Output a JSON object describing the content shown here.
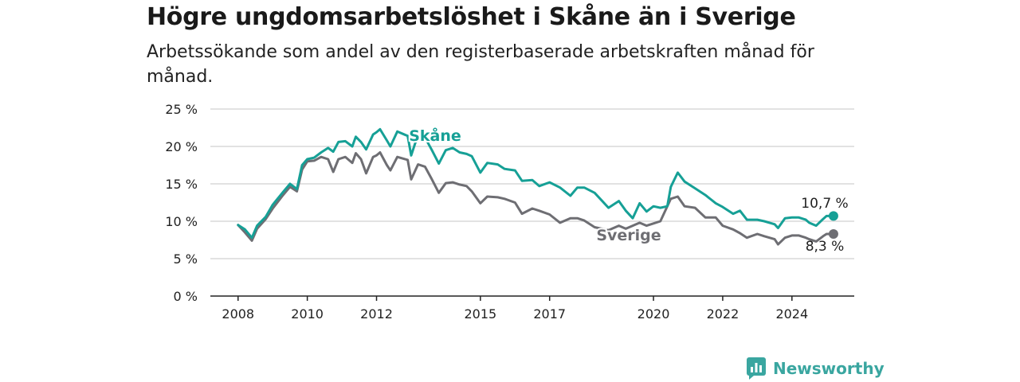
{
  "title": "Högre ungdomsarbetslöshet i Skåne än i Sverige",
  "subtitle": "Arbetssökande som andel av den registerbaserade arbetskraften månad för månad.",
  "brand": {
    "name": "Newsworthy",
    "icon": "newsworthy-logo-icon",
    "color": "#3aa6a0"
  },
  "chart_data": {
    "type": "line",
    "y_ticks": [
      "0 %",
      "5 %",
      "10 %",
      "15 %",
      "20 %",
      "25 %"
    ],
    "y_tick_values": [
      0,
      5,
      10,
      15,
      20,
      25
    ],
    "ylim": [
      0,
      25
    ],
    "x_ticks": [
      "2008",
      "2010",
      "2012",
      "2015",
      "2017",
      "2020",
      "2022",
      "2024"
    ],
    "x_tick_values": [
      2008.0,
      2010.0,
      2012.0,
      2015.0,
      2017.0,
      2020.0,
      2022.0,
      2024.0
    ],
    "xlim": [
      2007.2,
      2025.8
    ],
    "grid": true,
    "series": [
      {
        "name": "Skåne",
        "color": "#16a096",
        "end_label": "10,7 %",
        "x": [
          2008.0,
          2008.2,
          2008.4,
          2008.55,
          2008.8,
          2009.0,
          2009.3,
          2009.5,
          2009.7,
          2009.85,
          2010.0,
          2010.2,
          2010.4,
          2010.6,
          2010.75,
          2010.9,
          2011.1,
          2011.3,
          2011.4,
          2011.55,
          2011.7,
          2011.9,
          2012.0,
          2012.1,
          2012.3,
          2012.4,
          2012.6,
          2012.9,
          2013.0,
          2013.2,
          2013.4,
          2013.6,
          2013.8,
          2014.0,
          2014.2,
          2014.4,
          2014.6,
          2014.75,
          2015.0,
          2015.2,
          2015.5,
          2015.7,
          2016.0,
          2016.2,
          2016.5,
          2016.7,
          2017.0,
          2017.3,
          2017.6,
          2017.8,
          2018.0,
          2018.3,
          2018.5,
          2018.7,
          2019.0,
          2019.2,
          2019.4,
          2019.6,
          2019.8,
          2020.0,
          2020.2,
          2020.4,
          2020.5,
          2020.7,
          2020.9,
          2021.2,
          2021.5,
          2021.8,
          2022.0,
          2022.3,
          2022.5,
          2022.7,
          2023.0,
          2023.2,
          2023.5,
          2023.6,
          2023.8,
          2024.0,
          2024.2,
          2024.4,
          2024.5,
          2024.7,
          2024.9,
          2025.0,
          2025.2
        ],
        "values": [
          9.5,
          8.9,
          7.8,
          9.4,
          10.6,
          12.2,
          13.9,
          15.0,
          14.3,
          17.5,
          18.3,
          18.5,
          19.2,
          19.8,
          19.3,
          20.6,
          20.7,
          20.0,
          21.3,
          20.6,
          19.6,
          21.6,
          21.9,
          22.3,
          20.8,
          20.0,
          22.0,
          21.4,
          18.8,
          21.6,
          21.2,
          19.5,
          17.7,
          19.5,
          19.8,
          19.2,
          19.0,
          18.7,
          16.5,
          17.8,
          17.6,
          17.0,
          16.8,
          15.4,
          15.5,
          14.7,
          15.2,
          14.5,
          13.4,
          14.5,
          14.5,
          13.8,
          12.8,
          11.8,
          12.7,
          11.4,
          10.4,
          12.4,
          11.3,
          12.0,
          11.8,
          12.0,
          14.6,
          16.5,
          15.3,
          14.4,
          13.5,
          12.4,
          11.9,
          11.0,
          11.4,
          10.2,
          10.2,
          10.0,
          9.6,
          9.1,
          10.4,
          10.5,
          10.5,
          10.2,
          9.8,
          9.4,
          10.3,
          10.7,
          10.7
        ]
      },
      {
        "name": "Sverige",
        "color": "#6e6e73",
        "end_label": "8,3 %",
        "x": [
          2008.0,
          2008.2,
          2008.4,
          2008.55,
          2008.8,
          2009.0,
          2009.3,
          2009.5,
          2009.7,
          2009.85,
          2010.0,
          2010.2,
          2010.4,
          2010.6,
          2010.75,
          2010.9,
          2011.1,
          2011.3,
          2011.4,
          2011.55,
          2011.7,
          2011.9,
          2012.0,
          2012.1,
          2012.3,
          2012.4,
          2012.6,
          2012.9,
          2013.0,
          2013.2,
          2013.4,
          2013.6,
          2013.8,
          2014.0,
          2014.2,
          2014.4,
          2014.6,
          2014.75,
          2015.0,
          2015.2,
          2015.5,
          2015.7,
          2016.0,
          2016.2,
          2016.5,
          2016.7,
          2017.0,
          2017.3,
          2017.6,
          2017.8,
          2018.0,
          2018.3,
          2018.5,
          2018.7,
          2019.0,
          2019.2,
          2019.4,
          2019.6,
          2019.8,
          2020.0,
          2020.2,
          2020.4,
          2020.5,
          2020.7,
          2020.9,
          2021.2,
          2021.5,
          2021.8,
          2022.0,
          2022.3,
          2022.5,
          2022.7,
          2023.0,
          2023.2,
          2023.5,
          2023.6,
          2023.8,
          2024.0,
          2024.2,
          2024.4,
          2024.5,
          2024.7,
          2024.9,
          2025.0,
          2025.2
        ],
        "values": [
          9.5,
          8.5,
          7.4,
          9.0,
          10.3,
          11.7,
          13.5,
          14.6,
          14.0,
          16.9,
          18.0,
          18.1,
          18.6,
          18.3,
          16.6,
          18.3,
          18.6,
          17.8,
          19.1,
          18.3,
          16.4,
          18.6,
          18.8,
          19.2,
          17.5,
          16.8,
          18.6,
          18.2,
          15.6,
          17.6,
          17.3,
          15.6,
          13.8,
          15.1,
          15.2,
          14.9,
          14.7,
          14.0,
          12.4,
          13.3,
          13.2,
          13.0,
          12.5,
          11.0,
          11.7,
          11.4,
          10.9,
          9.8,
          10.4,
          10.4,
          10.1,
          9.2,
          9.0,
          8.8,
          9.4,
          9.0,
          9.4,
          9.8,
          9.4,
          9.7,
          10.0,
          12.0,
          13.0,
          13.3,
          12.0,
          11.8,
          10.5,
          10.5,
          9.4,
          8.9,
          8.4,
          7.8,
          8.3,
          8.0,
          7.6,
          6.9,
          7.8,
          8.1,
          8.1,
          7.8,
          7.6,
          7.3,
          8.0,
          8.3,
          8.3
        ]
      }
    ]
  }
}
